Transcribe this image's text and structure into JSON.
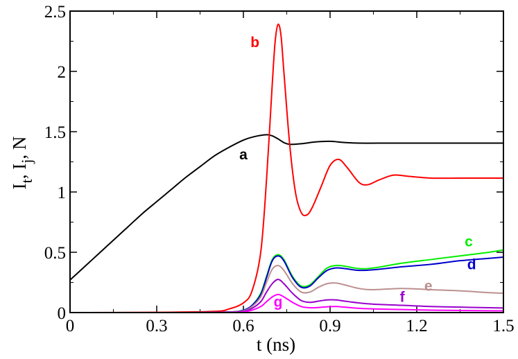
{
  "chart_data": {
    "type": "line",
    "title": "",
    "xlabel": "t (ns)",
    "ylabel_parts": [
      "I",
      "t",
      ", I",
      "j",
      ", N"
    ],
    "xlim": [
      0,
      1.5
    ],
    "ylim": [
      0,
      2.5
    ],
    "xticks": [
      0,
      0.3,
      0.6,
      0.9,
      1.2,
      1.5
    ],
    "xtick_labels": [
      "0",
      "0.3",
      "0.6",
      "0.9",
      "1.2",
      "1.5"
    ],
    "yticks": [
      0,
      0.5,
      1,
      1.5,
      2,
      2.5
    ],
    "ytick_labels": [
      "0",
      "0.5",
      "1",
      "1.5",
      "2",
      "2.5"
    ],
    "grid": false,
    "series": [
      {
        "name": "a",
        "color": "#000000",
        "x": [
          0,
          0.05,
          0.1,
          0.15,
          0.2,
          0.25,
          0.3,
          0.35,
          0.4,
          0.45,
          0.5,
          0.55,
          0.6,
          0.64,
          0.68,
          0.7,
          0.72,
          0.74,
          0.76,
          0.8,
          0.85,
          0.9,
          0.95,
          1.0,
          1.1,
          1.2,
          1.3,
          1.4,
          1.5
        ],
        "y": [
          0.27,
          0.38,
          0.49,
          0.6,
          0.71,
          0.82,
          0.92,
          1.02,
          1.12,
          1.21,
          1.3,
          1.37,
          1.43,
          1.46,
          1.475,
          1.465,
          1.44,
          1.41,
          1.395,
          1.4,
          1.415,
          1.42,
          1.41,
          1.405,
          1.405,
          1.405,
          1.405,
          1.405,
          1.405
        ]
      },
      {
        "name": "b",
        "color": "#ff0000",
        "x": [
          0,
          0.3,
          0.5,
          0.55,
          0.6,
          0.63,
          0.66,
          0.68,
          0.7,
          0.71,
          0.72,
          0.73,
          0.74,
          0.76,
          0.78,
          0.8,
          0.82,
          0.84,
          0.87,
          0.9,
          0.93,
          0.96,
          1.0,
          1.03,
          1.07,
          1.12,
          1.17,
          1.25,
          1.35,
          1.5
        ],
        "y": [
          0,
          0.002,
          0.01,
          0.03,
          0.08,
          0.18,
          0.5,
          1.1,
          1.9,
          2.25,
          2.39,
          2.3,
          2.0,
          1.4,
          1.0,
          0.83,
          0.81,
          0.88,
          1.05,
          1.22,
          1.27,
          1.2,
          1.08,
          1.06,
          1.1,
          1.14,
          1.13,
          1.115,
          1.115,
          1.115
        ]
      },
      {
        "name": "c",
        "color": "#00ee00",
        "x": [
          0,
          0.4,
          0.55,
          0.6,
          0.63,
          0.66,
          0.68,
          0.7,
          0.72,
          0.74,
          0.77,
          0.8,
          0.83,
          0.86,
          0.89,
          0.92,
          0.95,
          1.0,
          1.05,
          1.15,
          1.25,
          1.35,
          1.45,
          1.5
        ],
        "y": [
          0,
          0.0,
          0.005,
          0.02,
          0.06,
          0.16,
          0.3,
          0.44,
          0.48,
          0.44,
          0.3,
          0.22,
          0.23,
          0.3,
          0.37,
          0.39,
          0.385,
          0.365,
          0.37,
          0.41,
          0.44,
          0.47,
          0.5,
          0.52
        ]
      },
      {
        "name": "d",
        "color": "#0000cc",
        "x": [
          0,
          0.4,
          0.55,
          0.6,
          0.63,
          0.66,
          0.68,
          0.7,
          0.72,
          0.74,
          0.77,
          0.8,
          0.83,
          0.86,
          0.89,
          0.92,
          0.95,
          1.0,
          1.05,
          1.15,
          1.25,
          1.35,
          1.45,
          1.5
        ],
        "y": [
          0,
          0.0,
          0.005,
          0.02,
          0.06,
          0.15,
          0.29,
          0.43,
          0.47,
          0.43,
          0.29,
          0.21,
          0.22,
          0.29,
          0.35,
          0.37,
          0.365,
          0.35,
          0.355,
          0.38,
          0.4,
          0.43,
          0.45,
          0.46
        ]
      },
      {
        "name": "e",
        "color": "#bc8f8f",
        "x": [
          0,
          0.4,
          0.55,
          0.6,
          0.63,
          0.66,
          0.68,
          0.7,
          0.72,
          0.74,
          0.77,
          0.8,
          0.83,
          0.86,
          0.89,
          0.92,
          0.95,
          1.0,
          1.05,
          1.15,
          1.25,
          1.35,
          1.45,
          1.5
        ],
        "y": [
          0,
          0.0,
          0.004,
          0.015,
          0.05,
          0.13,
          0.25,
          0.36,
          0.39,
          0.35,
          0.24,
          0.17,
          0.17,
          0.21,
          0.24,
          0.245,
          0.23,
          0.2,
          0.19,
          0.2,
          0.19,
          0.18,
          0.165,
          0.16
        ]
      },
      {
        "name": "f",
        "color": "#9900cc",
        "x": [
          0,
          0.4,
          0.55,
          0.6,
          0.63,
          0.66,
          0.68,
          0.7,
          0.72,
          0.74,
          0.77,
          0.8,
          0.83,
          0.86,
          0.89,
          0.92,
          0.95,
          1.0,
          1.05,
          1.15,
          1.25,
          1.35,
          1.45,
          1.5
        ],
        "y": [
          0,
          0.0,
          0.003,
          0.01,
          0.035,
          0.09,
          0.17,
          0.24,
          0.275,
          0.24,
          0.16,
          0.1,
          0.085,
          0.095,
          0.105,
          0.105,
          0.095,
          0.08,
          0.07,
          0.06,
          0.05,
          0.045,
          0.04,
          0.038
        ]
      },
      {
        "name": "g",
        "color": "#ff00ff",
        "x": [
          0,
          0.4,
          0.55,
          0.6,
          0.63,
          0.66,
          0.68,
          0.7,
          0.72,
          0.74,
          0.77,
          0.8,
          0.83,
          0.86,
          0.89,
          0.92,
          0.95,
          1.0,
          1.05,
          1.15,
          1.25,
          1.35,
          1.45,
          1.5
        ],
        "y": [
          0,
          0.0,
          0.002,
          0.006,
          0.02,
          0.05,
          0.09,
          0.13,
          0.15,
          0.13,
          0.085,
          0.05,
          0.04,
          0.042,
          0.048,
          0.05,
          0.045,
          0.035,
          0.03,
          0.025,
          0.02,
          0.017,
          0.015,
          0.014
        ]
      }
    ],
    "annotations": [
      {
        "text": "a",
        "x": 0.6,
        "y": 1.27,
        "color": "#000000"
      },
      {
        "text": "b",
        "x": 0.64,
        "y": 2.2,
        "color": "#ff0000"
      },
      {
        "text": "c",
        "x": 1.38,
        "y": 0.55,
        "color": "#00ee00"
      },
      {
        "text": "d",
        "x": 1.39,
        "y": 0.36,
        "color": "#0000cc"
      },
      {
        "text": "e",
        "x": 1.24,
        "y": 0.18,
        "color": "#bc8f8f"
      },
      {
        "text": "f",
        "x": 1.15,
        "y": 0.09,
        "color": "#9900cc"
      },
      {
        "text": "g",
        "x": 0.72,
        "y": 0.05,
        "color": "#ff00ff"
      }
    ]
  }
}
